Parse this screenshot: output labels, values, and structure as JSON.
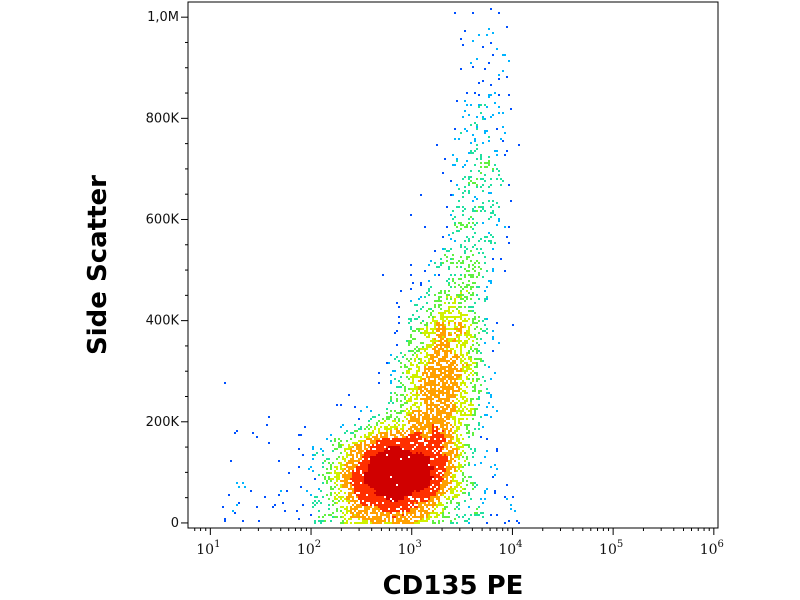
{
  "chart_data": {
    "type": "scatter",
    "subtype": "flow-cytometry-density",
    "xlabel": "CD135 PE",
    "ylabel": "Side Scatter",
    "x_scale": "log",
    "xlim": [
      6,
      1100000
    ],
    "ylim": [
      -10000,
      1030000
    ],
    "x_ticks": [
      {
        "value": 10,
        "base": "10",
        "exp": "1"
      },
      {
        "value": 100,
        "base": "10",
        "exp": "2"
      },
      {
        "value": 1000,
        "base": "10",
        "exp": "3"
      },
      {
        "value": 10000,
        "base": "10",
        "exp": "4"
      },
      {
        "value": 100000,
        "base": "10",
        "exp": "5"
      },
      {
        "value": 1000000,
        "base": "10",
        "exp": "6"
      }
    ],
    "y_ticks": [
      {
        "value": 0,
        "label": "0"
      },
      {
        "value": 200000,
        "label": "200K"
      },
      {
        "value": 400000,
        "label": "400K"
      },
      {
        "value": 600000,
        "label": "600K"
      },
      {
        "value": 800000,
        "label": "800K"
      },
      {
        "value": 1000000,
        "label": "1,0M"
      }
    ],
    "grid": false,
    "legend": "none",
    "colormap": [
      "#0000c8",
      "#0050ff",
      "#00b4ff",
      "#20e0a0",
      "#60f040",
      "#d0f000",
      "#ffa000",
      "#ff3000",
      "#d00000"
    ],
    "population_clusters": [
      {
        "x_log_center": 2.82,
        "y_center": 95000,
        "x_log_sd": 0.28,
        "y_sd": 45000,
        "density": "high"
      },
      {
        "x_log_center": 3.25,
        "y_center": 260000,
        "x_log_sd": 0.2,
        "y_sd": 110000,
        "density": "medium"
      },
      {
        "x_log_center": 3.6,
        "y_center": 600000,
        "x_log_sd": 0.15,
        "y_sd": 170000,
        "density": "low"
      }
    ]
  }
}
